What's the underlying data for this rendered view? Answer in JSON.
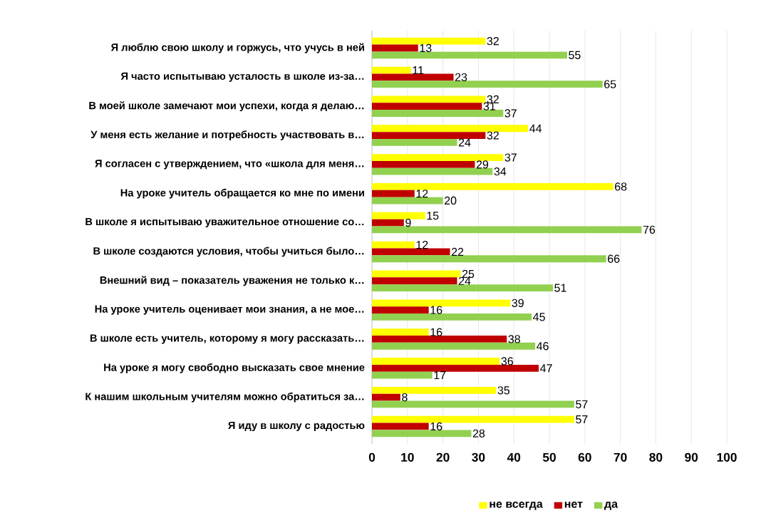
{
  "chart_data": {
    "type": "bar",
    "orientation": "horizontal",
    "categories": [
      "Я люблю свою школу и горжусь, что учусь в ней",
      "Я часто испытываю усталость в школе из-за…",
      "В моей школе замечают мои успехи, когда я делаю…",
      "У меня есть желание и потребность участвовать в…",
      "Я согласен с утверждением, что «школа для меня…",
      "На уроке учитель обращается ко мне по имени",
      "В школе я испытываю уважительное отношение со…",
      "В школе создаются условия, чтобы учиться было…",
      "Внешний вид – показатель уважения не только к…",
      "На уроке учитель оценивает мои знания, а не мое…",
      "В школе есть учитель, которому я могу рассказать…",
      "На уроке я могу свободно высказать свое мнение",
      "К нашим школьным учителям можно обратиться за…",
      "Я иду в школу с радостью"
    ],
    "series": [
      {
        "name": "не всегда",
        "color": "#ffff00",
        "values": [
          32,
          11,
          32,
          44,
          37,
          68,
          15,
          12,
          25,
          39,
          16,
          36,
          35,
          57
        ]
      },
      {
        "name": "нет",
        "color": "#c00000",
        "values": [
          13,
          23,
          31,
          32,
          29,
          12,
          9,
          22,
          24,
          16,
          38,
          47,
          8,
          16
        ]
      },
      {
        "name": "да",
        "color": "#92d050",
        "values": [
          55,
          65,
          37,
          24,
          34,
          20,
          76,
          66,
          51,
          45,
          46,
          17,
          57,
          28
        ]
      }
    ],
    "xlim": [
      0,
      100
    ],
    "xticks": [
      0,
      10,
      20,
      30,
      40,
      50,
      60,
      70,
      80,
      90,
      100
    ],
    "grid": "x",
    "legend": "bottom",
    "data_labels": true
  }
}
